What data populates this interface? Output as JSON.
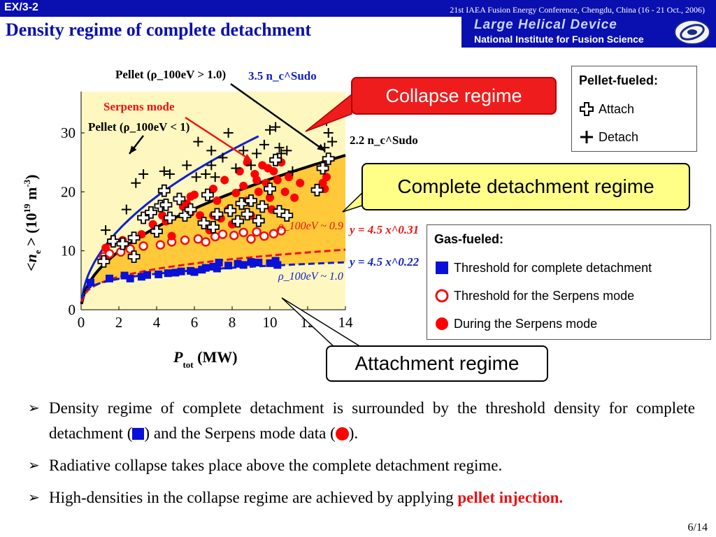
{
  "header": {
    "slide_id": "EX/3-2",
    "conference": "21st IAEA Fusion Energy Conference, Chengdu, China (16 - 21 Oct., 2006)",
    "title": "Density regime of complete detachment",
    "lhd_line1": "Large Helical Device",
    "lhd_line2": "National Institute for Fusion Science"
  },
  "callouts": {
    "collapse": "Collapse regime",
    "complete": "Complete detachment regime",
    "attachment": "Attachment regime"
  },
  "legend_pellet": {
    "title": "Pellet-fueled:",
    "attach": "Attach",
    "detach": "Detach"
  },
  "legend_gas": {
    "title": "Gas-fueled:",
    "threshold_complete": "Threshold for complete detachment",
    "threshold_serpens": "Threshold for the Serpens mode",
    "during_serpens": "During the Serpens mode"
  },
  "bullets": {
    "b1_a": "Density regime of complete detachment is surrounded by the threshold density for complete detachment (",
    "b1_b": ") and the Serpens mode data (",
    "b1_c": ").",
    "b2": "Radiative collapse takes place above the complete detachment regime.",
    "b3_a": "High-densities in the collapse regime are achieved by applying ",
    "b3_b": "pellet injection."
  },
  "page_number": "6/14",
  "colors": {
    "header_blue": "#0a0fb0",
    "collapse_red": "#ee1c1c",
    "complete_yellow": "#ffff88",
    "plot_bg": "#fff7c0",
    "regime_fill": "#ffc93a",
    "gas_blue": "#0a10d8",
    "serpens_red": "#ff0000"
  },
  "chart_data": {
    "type": "scatter",
    "xlabel": "P_tot (MW)",
    "ylabel": "<n_e> (10^19 m^-3)",
    "xlim": [
      0,
      14
    ],
    "ylim": [
      0,
      37
    ],
    "x_ticks": [
      "0",
      "2",
      "4",
      "6",
      "8",
      "10",
      "12",
      "14"
    ],
    "y_ticks": [
      "0",
      "10",
      "20",
      "30"
    ],
    "curves": [
      {
        "name": "3.5 n_c^Sudo",
        "coef": 9.6,
        "power": 0.5,
        "x_end": 9.4,
        "color": "#1020c8"
      },
      {
        "name": "2.2 n_c^Sudo",
        "coef": 7.0,
        "power": 0.5,
        "x_end": 14,
        "color": "#000000"
      },
      {
        "name": "y = 4.5 x^0.31",
        "coef": 4.5,
        "power": 0.31,
        "x_end": 14,
        "color": "#ee1111",
        "dashed": true
      },
      {
        "name": "y = 4.5 x^0.22",
        "coef": 4.5,
        "power": 0.22,
        "x_end": 14,
        "color": "#1020c8",
        "dashed": true
      }
    ],
    "labels": {
      "curve_35": "3.5 n_c^Sudo",
      "curve_22": "2.2 n_c^Sudo",
      "fit_red": "y = 4.5 x^0.31",
      "fit_blue": "y = 4.5 x^0.22",
      "pellet_gt": "Pellet (ρ_100eV > 1.0)",
      "pellet_lt": "Pellet (ρ_100eV < 1)",
      "serpens_mode": "Serpens mode",
      "rho_09": "ρ_100eV ~ 0.9",
      "rho_10": "ρ_100eV ~ 1.0"
    },
    "series": [
      {
        "name": "Threshold for complete detachment",
        "marker": "square",
        "color": "#0a10d8",
        "points": [
          [
            0.5,
            4.6
          ],
          [
            1.5,
            5.3
          ],
          [
            2.3,
            5.8
          ],
          [
            2.6,
            5.3
          ],
          [
            3.2,
            5.6
          ],
          [
            3.5,
            5.9
          ],
          [
            4.1,
            6.0
          ],
          [
            4.6,
            6.2
          ],
          [
            5.0,
            6.3
          ],
          [
            5.3,
            6.5
          ],
          [
            5.8,
            6.6
          ],
          [
            6.0,
            6.4
          ],
          [
            6.4,
            6.8
          ],
          [
            6.6,
            7.1
          ],
          [
            7.0,
            7.3
          ],
          [
            7.2,
            7.0
          ],
          [
            7.3,
            8.0
          ],
          [
            7.8,
            7.5
          ],
          [
            8.3,
            7.8
          ],
          [
            8.6,
            7.6
          ],
          [
            9.0,
            8.1
          ],
          [
            9.4,
            8.0
          ],
          [
            10.0,
            7.9
          ],
          [
            10.3,
            8.3
          ],
          [
            10.4,
            7.6
          ]
        ]
      },
      {
        "name": "Threshold for the Serpens mode",
        "marker": "circle-open",
        "color": "#ee1111",
        "points": [
          [
            1.2,
            9.0
          ],
          [
            1.5,
            9.5
          ],
          [
            2.1,
            9.8
          ],
          [
            2.6,
            10.3
          ],
          [
            3.3,
            10.8
          ],
          [
            4.2,
            11.0
          ],
          [
            4.8,
            11.5
          ],
          [
            5.5,
            11.8
          ],
          [
            6.2,
            12.0
          ],
          [
            6.6,
            11.5
          ],
          [
            7.1,
            12.4
          ],
          [
            7.5,
            12.8
          ],
          [
            8.1,
            12.6
          ],
          [
            8.6,
            13.1
          ],
          [
            9.0,
            12.0
          ],
          [
            9.3,
            13.2
          ],
          [
            9.7,
            12.5
          ],
          [
            10.2,
            12.9
          ],
          [
            10.6,
            13.4
          ]
        ]
      },
      {
        "name": "During the Serpens mode",
        "marker": "circle",
        "color": "#ff0000",
        "points": [
          [
            1.3,
            10.5
          ],
          [
            1.6,
            11.5
          ],
          [
            1.3,
            8.6
          ],
          [
            3.8,
            14.5
          ],
          [
            4.3,
            16.0
          ],
          [
            4.5,
            15.0
          ],
          [
            5.4,
            17.5
          ],
          [
            5.6,
            18.0
          ],
          [
            5.8,
            16.5
          ],
          [
            6.0,
            19.5
          ],
          [
            6.3,
            16.0
          ],
          [
            6.6,
            14.5
          ],
          [
            7.0,
            20.5
          ],
          [
            7.2,
            18.5
          ],
          [
            7.6,
            22.0
          ],
          [
            7.8,
            17.0
          ],
          [
            8.0,
            14.5
          ],
          [
            8.4,
            23.5
          ],
          [
            8.6,
            21.0
          ],
          [
            8.8,
            18.5
          ],
          [
            9.0,
            16.0
          ],
          [
            9.2,
            23.0
          ],
          [
            9.4,
            20.0
          ],
          [
            9.6,
            24.5
          ],
          [
            9.8,
            21.5
          ],
          [
            10.0,
            19.0
          ],
          [
            10.2,
            23.5
          ],
          [
            10.4,
            22.0
          ],
          [
            10.6,
            25.0
          ],
          [
            10.8,
            20.0
          ],
          [
            11.0,
            22.5
          ],
          [
            11.3,
            19.0
          ],
          [
            11.6,
            21.5
          ],
          [
            12.8,
            21.5
          ],
          [
            12.9,
            24.0
          ],
          [
            13.0,
            22.5
          ],
          [
            13.1,
            25.5
          ],
          [
            12.9,
            20.5
          ],
          [
            5.8,
            19.2
          ],
          [
            8.8,
            25.0
          ],
          [
            9.3,
            22.0
          ],
          [
            10.1,
            17.0
          ],
          [
            6.8,
            13.5
          ],
          [
            7.4,
            15.5
          ],
          [
            4.8,
            12.5
          ],
          [
            3.2,
            12.8
          ],
          [
            2.2,
            11.8
          ],
          [
            8.2,
            19.8
          ],
          [
            7.0,
            16.0
          ],
          [
            9.9,
            24.0
          ]
        ]
      },
      {
        "name": "Attach",
        "marker": "plus-open",
        "color": "#000000",
        "points": [
          [
            1.2,
            8.2
          ],
          [
            1.7,
            11.6
          ],
          [
            2.2,
            11.2
          ],
          [
            2.8,
            12.2
          ],
          [
            3.3,
            15.6
          ],
          [
            3.7,
            16.5
          ],
          [
            4.2,
            17.6
          ],
          [
            4.4,
            20.2
          ],
          [
            4.5,
            17.8
          ],
          [
            4.7,
            15.6
          ],
          [
            5.2,
            18.8
          ],
          [
            5.5,
            16.0
          ],
          [
            5.8,
            17.0
          ],
          [
            6.5,
            14.7
          ],
          [
            6.7,
            19.5
          ],
          [
            7.0,
            14.0
          ],
          [
            7.2,
            16.2
          ],
          [
            8.3,
            15.0
          ],
          [
            8.5,
            18.0
          ],
          [
            8.8,
            16.2
          ],
          [
            9.0,
            18.5
          ],
          [
            9.4,
            15.1
          ],
          [
            9.6,
            17.5
          ],
          [
            10.0,
            20.5
          ],
          [
            10.3,
            25.4
          ],
          [
            10.5,
            16.7
          ],
          [
            10.9,
            16.0
          ],
          [
            12.5,
            20.3
          ],
          [
            12.8,
            24.0
          ],
          [
            13.1,
            25.6
          ],
          [
            2.8,
            9.0
          ],
          [
            4.0,
            13.3
          ],
          [
            7.9,
            16.8
          ]
        ]
      },
      {
        "name": "Detach",
        "marker": "plus",
        "color": "#000000",
        "points": [
          [
            1.3,
            13.5
          ],
          [
            2.4,
            17.0
          ],
          [
            2.9,
            21.5
          ],
          [
            3.3,
            23.0
          ],
          [
            4.4,
            23.5
          ],
          [
            4.7,
            23.0
          ],
          [
            5.6,
            24.5
          ],
          [
            6.1,
            22.5
          ],
          [
            6.6,
            23.0
          ],
          [
            6.9,
            24.5
          ],
          [
            7.1,
            22.5
          ],
          [
            7.5,
            25.8
          ],
          [
            8.2,
            24.0
          ],
          [
            8.6,
            27.0
          ],
          [
            9.0,
            24.5
          ],
          [
            9.3,
            26.5
          ],
          [
            9.7,
            28.0
          ],
          [
            10.0,
            30.5
          ],
          [
            10.3,
            31.0
          ],
          [
            10.5,
            27.5
          ],
          [
            10.9,
            27.0
          ],
          [
            11.2,
            23.5
          ],
          [
            12.9,
            27.5
          ],
          [
            13.1,
            30.0
          ],
          [
            13.0,
            32.0
          ],
          [
            13.3,
            28.5
          ],
          [
            6.2,
            28.5
          ],
          [
            6.9,
            27.0
          ],
          [
            7.8,
            30.0
          ],
          [
            10.6,
            26.5
          ]
        ]
      }
    ]
  }
}
